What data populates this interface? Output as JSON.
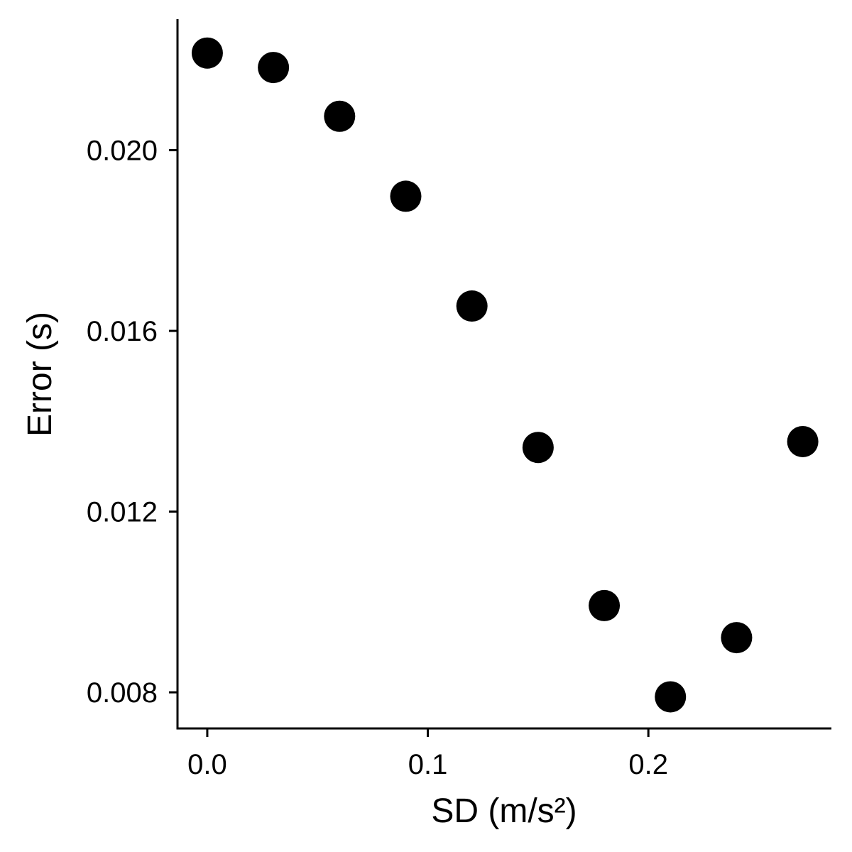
{
  "chart_data": {
    "type": "scatter",
    "xlabel": "SD (m/s²)",
    "ylabel": "Error (s)",
    "xlim": [
      -0.0135,
      0.283
    ],
    "ylim": [
      0.0072,
      0.0229
    ],
    "x_ticks": [
      0.0,
      0.1,
      0.2
    ],
    "x_tick_labels": [
      "0.0",
      "0.1",
      "0.2"
    ],
    "y_ticks": [
      0.008,
      0.012,
      0.016,
      0.02
    ],
    "y_tick_labels": [
      "0.008",
      "0.012",
      "0.016",
      "0.020"
    ],
    "grid": false,
    "point_color": "#000000",
    "points": [
      {
        "x": 0.0,
        "y": 0.02215
      },
      {
        "x": 0.03,
        "y": 0.02183
      },
      {
        "x": 0.06,
        "y": 0.02075
      },
      {
        "x": 0.09,
        "y": 0.01898
      },
      {
        "x": 0.12,
        "y": 0.01655
      },
      {
        "x": 0.15,
        "y": 0.01342
      },
      {
        "x": 0.18,
        "y": 0.00992
      },
      {
        "x": 0.21,
        "y": 0.0079
      },
      {
        "x": 0.24,
        "y": 0.00921
      },
      {
        "x": 0.27,
        "y": 0.01355
      }
    ]
  }
}
